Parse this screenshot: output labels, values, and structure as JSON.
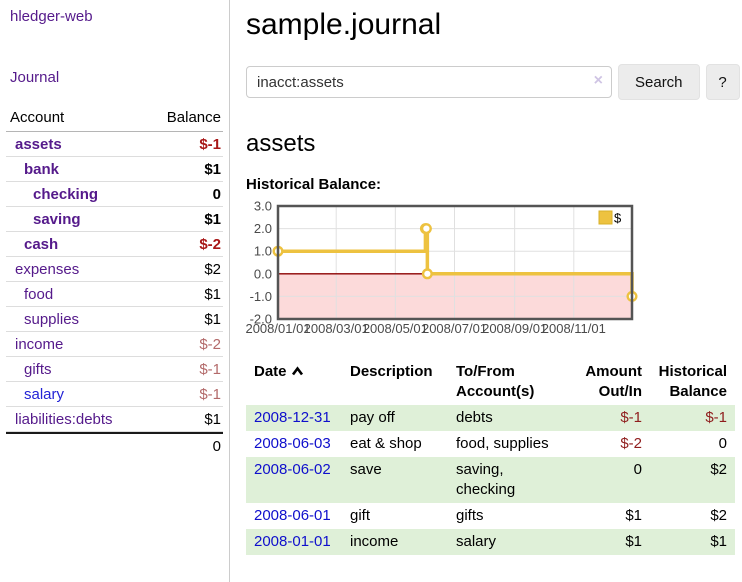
{
  "sidebar": {
    "brand": "hledger-web",
    "nav": {
      "journal": "Journal"
    },
    "accounts_table": {
      "col_account": "Account",
      "col_balance": "Balance",
      "rows": [
        {
          "name": "assets",
          "indent": 1,
          "bold": true,
          "link_style": "visited",
          "balance": "$-1",
          "balance_class": "neg-bold"
        },
        {
          "name": "bank",
          "indent": 2,
          "bold": true,
          "link_style": "visited",
          "balance": "$1",
          "balance_class": "pos-bold"
        },
        {
          "name": "checking",
          "indent": 3,
          "bold": true,
          "link_style": "visited",
          "balance": "0",
          "balance_class": "pos-bold"
        },
        {
          "name": "saving",
          "indent": 3,
          "bold": true,
          "link_style": "visited",
          "balance": "$1",
          "balance_class": "pos-bold"
        },
        {
          "name": "cash",
          "indent": 2,
          "bold": true,
          "link_style": "visited",
          "balance": "$-2",
          "balance_class": "neg-bold"
        },
        {
          "name": "expenses",
          "indent": 1,
          "bold": false,
          "link_style": "visited",
          "balance": "$2",
          "balance_class": "pos"
        },
        {
          "name": "food",
          "indent": 2,
          "bold": false,
          "link_style": "visited",
          "balance": "$1",
          "balance_class": "pos"
        },
        {
          "name": "supplies",
          "indent": 2,
          "bold": false,
          "link_style": "visited",
          "balance": "$1",
          "balance_class": "pos"
        },
        {
          "name": "income",
          "indent": 1,
          "bold": false,
          "link_style": "visited",
          "balance": "$-2",
          "balance_class": "neg"
        },
        {
          "name": "gifts",
          "indent": 2,
          "bold": false,
          "link_style": "visited",
          "balance": "$-1",
          "balance_class": "neg"
        },
        {
          "name": "salary",
          "indent": 2,
          "bold": false,
          "link_style": "unvisited",
          "balance": "$-1",
          "balance_class": "neg"
        },
        {
          "name": "liabilities:debts",
          "indent": 1,
          "bold": false,
          "link_style": "visited",
          "balance": "$1",
          "balance_class": "pos"
        }
      ],
      "total": "0"
    }
  },
  "header": {
    "title": "sample.journal"
  },
  "search": {
    "query": "inacct:assets",
    "clear_icon": "×",
    "search_label": "Search",
    "help_label": "?"
  },
  "account_page": {
    "heading": "assets",
    "chart_label": "Historical Balance:"
  },
  "chart_data": {
    "type": "line",
    "style": "step",
    "title": "Historical Balance",
    "legend": "$",
    "legend_position": "top-right",
    "ylim": [
      -2,
      3
    ],
    "y_ticks": [
      "3.0",
      "2.0",
      "1.0",
      "0.0",
      "-1.0",
      "-2.0"
    ],
    "x_ticks": [
      "2008/01/01",
      "2008/03/01",
      "2008/05/01",
      "2008/07/01",
      "2008/09/01",
      "2008/11/01"
    ],
    "x_range": [
      "2008-01-01",
      "2008-12-31"
    ],
    "grid": true,
    "series": [
      {
        "name": "$",
        "color": "#edc240",
        "points": [
          {
            "date": "2008-01-01",
            "value": 1
          },
          {
            "date": "2008-06-01",
            "value": 2
          },
          {
            "date": "2008-06-02",
            "value": 2
          },
          {
            "date": "2008-06-03",
            "value": 0
          },
          {
            "date": "2008-12-31",
            "value": -1
          }
        ]
      }
    ],
    "negative_region_color": "#fcdada",
    "zero_line_color": "#8b0000",
    "gridline_color": "#e0e0e0",
    "border_color": "#545454",
    "tick_label_color": "#4a4a4a"
  },
  "register_table": {
    "columns": {
      "date": "Date",
      "description": "Description",
      "tofrom_line1": "To/From",
      "tofrom_line2": "Account(s)",
      "amount_line1": "Amount",
      "amount_line2": "Out/In",
      "hist_line1": "Historical",
      "hist_line2": "Balance"
    },
    "sort": {
      "column": "date",
      "direction": "ascending"
    },
    "rows": [
      {
        "date": "2008-12-31",
        "description": "pay off",
        "accounts": "debts",
        "amount": "$-1",
        "amount_neg": true,
        "balance": "$-1",
        "balance_neg": true
      },
      {
        "date": "2008-06-03",
        "description": "eat & shop",
        "accounts": "food, supplies",
        "amount": "$-2",
        "amount_neg": true,
        "balance": "0",
        "balance_neg": false
      },
      {
        "date": "2008-06-02",
        "description": "save",
        "accounts": "saving, checking",
        "amount": "0",
        "amount_neg": false,
        "balance": "$2",
        "balance_neg": false
      },
      {
        "date": "2008-06-01",
        "description": "gift",
        "accounts": "gifts",
        "amount": "$1",
        "amount_neg": false,
        "balance": "$2",
        "balance_neg": false
      },
      {
        "date": "2008-01-01",
        "description": "income",
        "accounts": "salary",
        "amount": "$1",
        "amount_neg": false,
        "balance": "$1",
        "balance_neg": false
      }
    ]
  },
  "colors": {
    "link_purple": "#551a8b",
    "link_blue": "#2323d6",
    "date_link_blue": "#0f0fcc",
    "negative_bold_red": "#a81717",
    "negative_muted_red": "#b36a6a",
    "table_negative_red": "#8f1d1d",
    "row_stripe_green": "#dff0d8",
    "series_gold": "#edc240",
    "button_gray": "#ececec"
  }
}
